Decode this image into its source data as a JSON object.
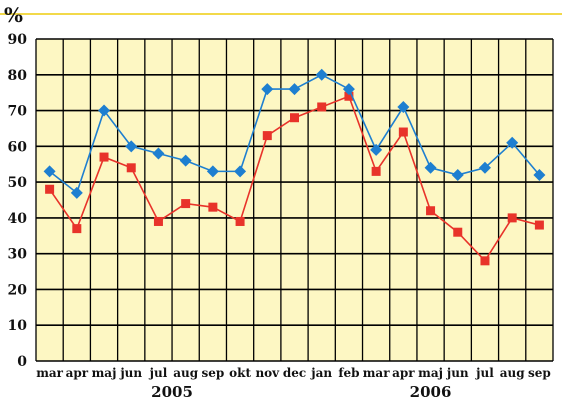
{
  "chart_data": {
    "type": "line",
    "y_unit_label": "%",
    "categories": [
      "mar",
      "apr",
      "maj",
      "jun",
      "jul",
      "aug",
      "sep",
      "okt",
      "nov",
      "dec",
      "jan",
      "feb",
      "mar",
      "apr",
      "maj",
      "jun",
      "jul",
      "aug",
      "sep"
    ],
    "year_labels": [
      {
        "label": "2005",
        "from": 0,
        "to": 9
      },
      {
        "label": "2006",
        "from": 10,
        "to": 18
      }
    ],
    "ylim": [
      0,
      90
    ],
    "yticks": [
      0,
      10,
      20,
      30,
      40,
      50,
      60,
      70,
      80,
      90
    ],
    "grid": true,
    "series": [
      {
        "color": "#1e7fd0",
        "marker": "diamond",
        "values": [
          53,
          47,
          70,
          60,
          58,
          56,
          53,
          53,
          76,
          76,
          80,
          76,
          59,
          71,
          54,
          52,
          54,
          61,
          52
        ]
      },
      {
        "color": "#e8332a",
        "marker": "square",
        "values": [
          48,
          37,
          57,
          54,
          39,
          44,
          43,
          39,
          63,
          68,
          71,
          74,
          53,
          64,
          42,
          36,
          28,
          40,
          38
        ]
      }
    ]
  },
  "colors": {
    "plot_background": "#fdf7c3",
    "grid": "#000000",
    "header_line": "#f2d94a"
  }
}
